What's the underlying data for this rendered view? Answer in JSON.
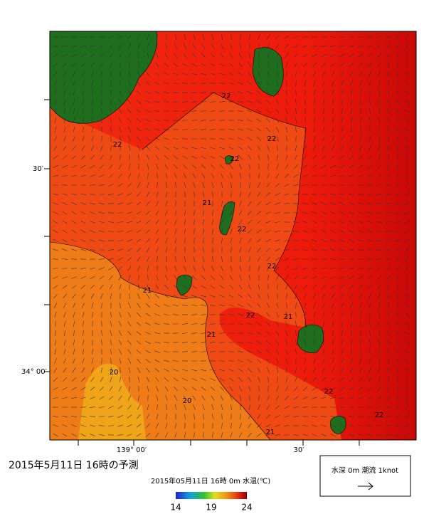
{
  "map": {
    "lat_labels": [
      "30′",
      "34° 00′"
    ],
    "lon_labels": [
      "139° 00′",
      "30′"
    ],
    "contour_labels": [
      "22",
      "22",
      "22",
      "22",
      "21",
      "22",
      "22",
      "21",
      "22",
      "21",
      "21",
      "20",
      "20",
      "21",
      "22",
      "22"
    ]
  },
  "caption": "2015年5月11日 16時の予測",
  "colorbar": {
    "title": "2015年05月11日 16時 0m 水温(℃)",
    "clim": [
      14,
      24
    ],
    "ticks": [
      14,
      19,
      24
    ]
  },
  "legend": {
    "text": "水深 0m 潮流 1knot"
  }
}
